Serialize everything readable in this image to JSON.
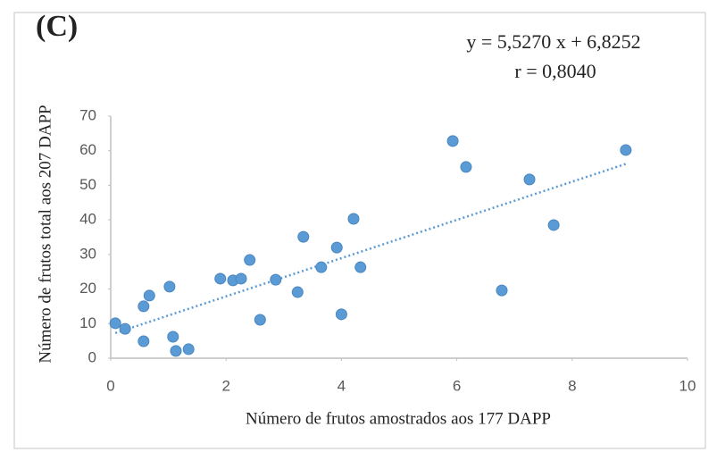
{
  "chart_data": {
    "type": "scatter",
    "title": "(C)",
    "x_label": "Número de frutos amostrados aos 177 DAPP",
    "y_label": "Número de frutos total aos 207 DAPP",
    "series": [
      {
        "color": "#5b9bd5",
        "x": [
          0.08,
          0.25,
          0.57,
          0.57,
          0.67,
          1.02,
          1.08,
          1.13,
          1.35,
          1.9,
          2.12,
          2.26,
          2.41,
          2.59,
          2.86,
          3.24,
          3.34,
          3.65,
          3.92,
          4.0,
          4.21,
          4.33,
          5.93,
          6.16,
          6.78,
          7.26,
          7.68,
          8.93
        ],
        "values": [
          10.1,
          8.5,
          4.9,
          15.0,
          18.1,
          20.7,
          6.2,
          2.1,
          2.6,
          23.0,
          22.5,
          23.0,
          28.4,
          11.1,
          22.7,
          19.1,
          35.1,
          26.3,
          32.0,
          12.7,
          40.3,
          26.3,
          62.8,
          55.3,
          19.6,
          51.7,
          38.5,
          60.2
        ]
      }
    ],
    "trendline": {
      "equation": "y = 5,5270 x + 6,8252",
      "r": "r = 0,8040",
      "slope": 5.527,
      "intercept": 6.8252,
      "color": "#5b9bd5"
    },
    "xlim": [
      0,
      10
    ],
    "xticks": [
      0,
      2,
      4,
      6,
      8,
      10
    ],
    "ylim": [
      0,
      70
    ],
    "yticks": [
      0,
      10,
      20,
      30,
      40,
      50,
      60,
      70
    ]
  }
}
